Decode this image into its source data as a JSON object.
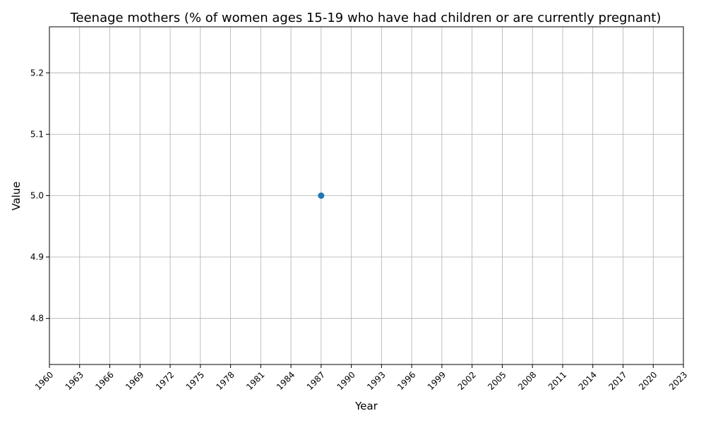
{
  "chart_data": {
    "type": "line",
    "title": "Teenage mothers (% of women ages 15-19 who have had children or are currently pregnant)",
    "xlabel": "Year",
    "ylabel": "Value",
    "x_ticks": [
      1960,
      1963,
      1966,
      1969,
      1972,
      1975,
      1978,
      1981,
      1984,
      1987,
      1990,
      1993,
      1996,
      1999,
      2002,
      2005,
      2008,
      2011,
      2014,
      2017,
      2020,
      2023
    ],
    "y_ticks": [
      "4.8",
      "4.9",
      "5.0",
      "5.1",
      "5.2"
    ],
    "xlim": [
      1960,
      2023
    ],
    "ylim": [
      4.725,
      5.275
    ],
    "grid": true,
    "series": [
      {
        "x": [
          1987
        ],
        "y": [
          5.0
        ],
        "color": "#1f77b4",
        "marker": "circle"
      }
    ]
  }
}
